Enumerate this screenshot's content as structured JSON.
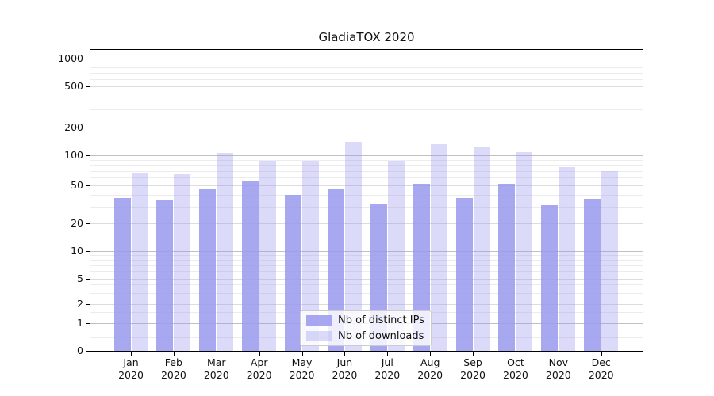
{
  "chart_data": {
    "type": "bar",
    "title": "GladiaTOX 2020",
    "xlabel": "",
    "ylabel": "",
    "y_scale": "symlog",
    "ylim": [
      0,
      1000
    ],
    "y_ticks": [
      "0",
      "1",
      "2",
      "5",
      "10",
      "20",
      "50",
      "100",
      "200",
      "500",
      "1000"
    ],
    "grid": "horizontal",
    "categories": [
      "Jan",
      "Feb",
      "Mar",
      "Apr",
      "May",
      "Jun",
      "Jul",
      "Aug",
      "Sep",
      "Oct",
      "Nov",
      "Dec"
    ],
    "category_year": "2020",
    "series": [
      {
        "name": "Nb of distinct IPs",
        "color": "rgba(153,153,238,0.85)",
        "values": [
          37,
          35,
          46,
          55,
          40,
          46,
          32,
          52,
          37,
          52,
          31,
          36
        ]
      },
      {
        "name": "Nb of downloads",
        "color": "rgba(153,153,238,0.35)",
        "values": [
          67,
          65,
          106,
          88,
          88,
          140,
          88,
          132,
          125,
          108,
          76,
          70
        ]
      }
    ],
    "legend": {
      "position": "lower center",
      "entries": [
        "Nb of distinct IPs",
        "Nb of downloads"
      ]
    }
  },
  "colors": {
    "grid_major": "#c0c0c0",
    "grid_mid": "#dcdcdc",
    "grid_minor": "#ececec",
    "spine": "#000000",
    "text": "#111111"
  }
}
